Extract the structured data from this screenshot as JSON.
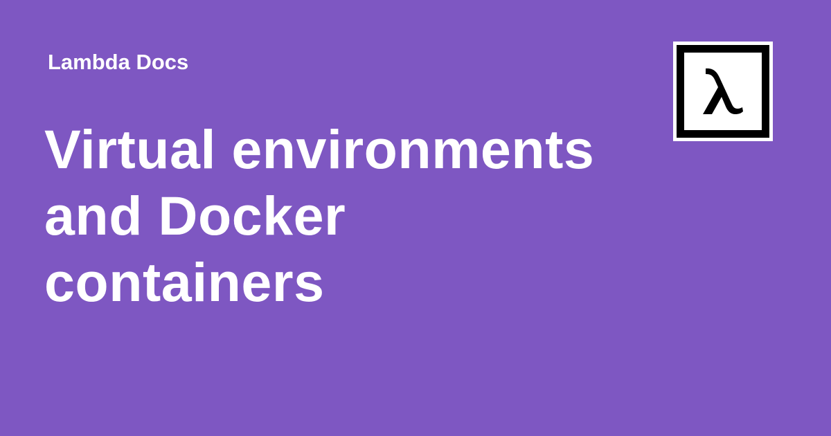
{
  "site": {
    "name": "Lambda Docs"
  },
  "page": {
    "title": "Virtual environments and Docker containers"
  },
  "logo": {
    "icon": "lambda-icon",
    "glyph": "λ"
  },
  "colors": {
    "background": "#7e57c2",
    "text": "#ffffff",
    "logo_border": "#000000",
    "logo_background": "#ffffff"
  }
}
